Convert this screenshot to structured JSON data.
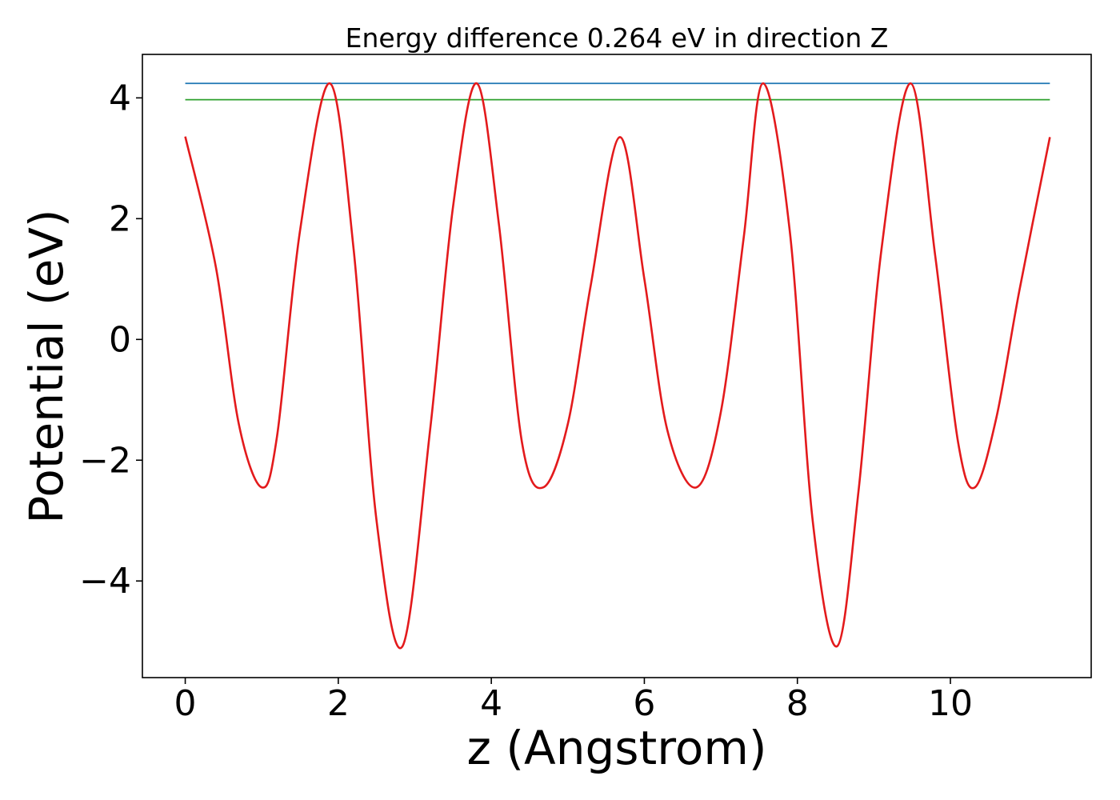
{
  "chart_data": {
    "type": "line",
    "title": "Energy difference 0.264 eV in direction Z",
    "xlabel": "z (Angstrom)",
    "ylabel": "Potential (eV)",
    "xlim": [
      -0.56,
      11.84
    ],
    "ylim": [
      -5.6,
      4.72
    ],
    "xticks": [
      0,
      2,
      4,
      6,
      8,
      10
    ],
    "xtick_labels": [
      "0",
      "2",
      "4",
      "6",
      "8",
      "10"
    ],
    "yticks": [
      -4,
      -2,
      0,
      2,
      4
    ],
    "ytick_labels": [
      "−4",
      "−2",
      "0",
      "2",
      "4"
    ],
    "grid": false,
    "legend": "none",
    "series": [
      {
        "color": "#1f77b4",
        "style": "horizontal",
        "x": [
          0,
          11.3
        ],
        "y": [
          4.24,
          4.24
        ]
      },
      {
        "color": "#2ca02c",
        "style": "horizontal",
        "x": [
          0,
          11.3
        ],
        "y": [
          3.97,
          3.97
        ]
      },
      {
        "color": "#e31a1c",
        "style": "curve",
        "x": [
          0.0,
          0.4,
          0.7,
          1.0,
          1.2,
          1.5,
          1.89,
          2.2,
          2.5,
          2.84,
          3.2,
          3.5,
          3.81,
          4.1,
          4.4,
          4.68,
          5.0,
          5.3,
          5.68,
          6.0,
          6.3,
          6.68,
          7.0,
          7.3,
          7.55,
          7.9,
          8.2,
          8.52,
          8.8,
          9.1,
          9.48,
          9.8,
          10.1,
          10.32,
          10.6,
          10.9,
          11.3
        ],
        "y": [
          3.36,
          1.2,
          -1.4,
          -2.45,
          -1.6,
          1.8,
          4.24,
          1.5,
          -3.0,
          -5.08,
          -1.5,
          2.2,
          4.24,
          1.9,
          -1.7,
          -2.45,
          -1.4,
          0.9,
          3.35,
          1.0,
          -1.5,
          -2.45,
          -1.2,
          1.7,
          4.24,
          1.8,
          -3.0,
          -5.08,
          -2.5,
          1.5,
          4.24,
          1.4,
          -1.7,
          -2.45,
          -1.3,
          0.8,
          3.35
        ]
      }
    ]
  }
}
